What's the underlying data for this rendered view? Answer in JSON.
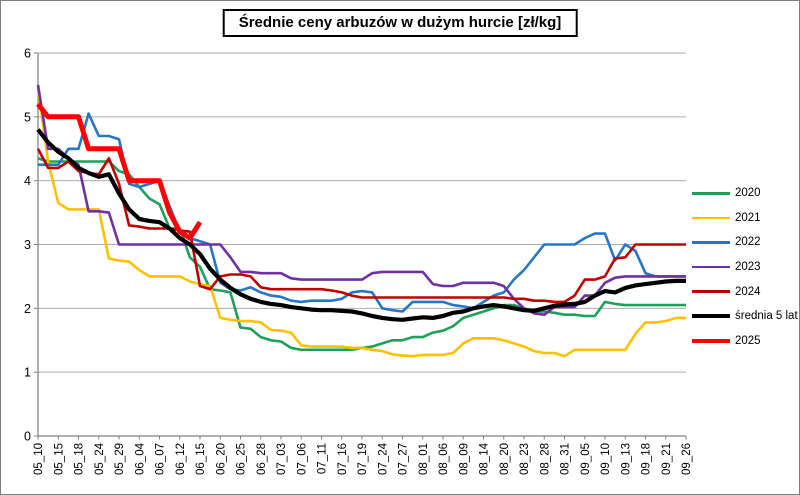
{
  "chart_data": {
    "type": "line",
    "title": "Średnie ceny arbuzów w dużym hurcie [zł/kg]",
    "xlabel": "",
    "ylabel": "",
    "ylim": [
      0,
      6
    ],
    "y_ticks": [
      0,
      1,
      2,
      3,
      4,
      5,
      6
    ],
    "grid": "horizontal",
    "legend_position": "right",
    "x_tick_labels": [
      "05_10",
      "05_15",
      "05_18",
      "05_24",
      "05_29",
      "06_04",
      "06_07",
      "06_12",
      "06_15",
      "06_20",
      "06_25",
      "06_28",
      "07_03",
      "07_06",
      "07_11",
      "07_16",
      "07_19",
      "07_24",
      "07_27",
      "08_01",
      "08_06",
      "08_09",
      "08_14",
      "08_20",
      "08_23",
      "08_28",
      "08_31",
      "09_05",
      "09_10",
      "09_13",
      "09_18",
      "09_21",
      "09_26"
    ],
    "points_per_label_interval": 2,
    "series": [
      {
        "name": "2020",
        "color": "#1FA05A",
        "line_width": 2.6,
        "values": [
          4.35,
          4.3,
          4.3,
          4.3,
          4.3,
          4.3,
          4.3,
          4.3,
          4.15,
          4.1,
          3.9,
          3.72,
          3.63,
          3.25,
          3.25,
          2.8,
          2.65,
          2.3,
          2.28,
          2.25,
          1.7,
          1.68,
          1.55,
          1.5,
          1.48,
          1.38,
          1.35,
          1.35,
          1.35,
          1.35,
          1.35,
          1.35,
          1.38,
          1.4,
          1.45,
          1.5,
          1.5,
          1.55,
          1.55,
          1.62,
          1.65,
          1.72,
          1.85,
          1.9,
          1.95,
          2.0,
          2.05,
          2.05,
          2.0,
          1.95,
          1.95,
          1.93,
          1.9,
          1.9,
          1.88,
          1.88,
          2.1,
          2.07,
          2.05,
          2.05,
          2.05,
          2.05,
          2.05,
          2.05,
          2.05
        ]
      },
      {
        "name": "2021",
        "color": "#FFC000",
        "line_width": 2.6,
        "values": [
          5.45,
          4.3,
          3.65,
          3.55,
          3.55,
          3.55,
          3.55,
          2.78,
          2.75,
          2.73,
          2.6,
          2.5,
          2.5,
          2.5,
          2.5,
          2.42,
          2.38,
          2.35,
          1.85,
          1.82,
          1.8,
          1.8,
          1.78,
          1.66,
          1.65,
          1.62,
          1.42,
          1.4,
          1.4,
          1.4,
          1.4,
          1.38,
          1.38,
          1.35,
          1.33,
          1.28,
          1.26,
          1.25,
          1.27,
          1.27,
          1.27,
          1.3,
          1.45,
          1.53,
          1.53,
          1.53,
          1.5,
          1.45,
          1.4,
          1.33,
          1.3,
          1.3,
          1.25,
          1.35,
          1.35,
          1.35,
          1.35,
          1.35,
          1.35,
          1.6,
          1.78,
          1.78,
          1.8,
          1.85,
          1.85
        ]
      },
      {
        "name": "2022",
        "color": "#2776C6",
        "line_width": 2.6,
        "values": [
          4.25,
          4.25,
          4.25,
          4.5,
          4.5,
          5.05,
          4.7,
          4.7,
          4.65,
          3.95,
          3.9,
          3.95,
          4.0,
          3.6,
          3.2,
          3.1,
          3.05,
          3.0,
          2.4,
          2.3,
          2.28,
          2.33,
          2.25,
          2.2,
          2.18,
          2.12,
          2.1,
          2.12,
          2.12,
          2.12,
          2.15,
          2.25,
          2.27,
          2.25,
          2.0,
          1.97,
          1.95,
          2.1,
          2.1,
          2.1,
          2.1,
          2.05,
          2.03,
          2.0,
          2.1,
          2.2,
          2.25,
          2.45,
          2.6,
          2.8,
          3.0,
          3.0,
          3.0,
          3.0,
          3.1,
          3.17,
          3.17,
          2.75,
          3.0,
          2.9,
          2.55,
          2.5,
          2.5,
          2.5,
          2.5
        ]
      },
      {
        "name": "2023",
        "color": "#7030A0",
        "line_width": 2.6,
        "values": [
          5.5,
          4.5,
          4.5,
          4.35,
          4.25,
          3.52,
          3.52,
          3.5,
          3.0,
          3.0,
          3.0,
          3.0,
          3.0,
          3.0,
          3.0,
          3.0,
          3.0,
          3.0,
          3.0,
          2.8,
          2.57,
          2.57,
          2.55,
          2.55,
          2.55,
          2.47,
          2.45,
          2.45,
          2.45,
          2.45,
          2.45,
          2.45,
          2.45,
          2.55,
          2.57,
          2.57,
          2.57,
          2.57,
          2.57,
          2.38,
          2.35,
          2.35,
          2.4,
          2.4,
          2.4,
          2.4,
          2.35,
          2.15,
          2.0,
          1.92,
          1.9,
          2.02,
          2.02,
          2.02,
          2.2,
          2.2,
          2.4,
          2.48,
          2.5,
          2.5,
          2.5,
          2.5,
          2.5,
          2.5,
          2.5
        ]
      },
      {
        "name": "2024",
        "color": "#C00000",
        "line_width": 2.6,
        "values": [
          4.5,
          4.2,
          4.2,
          4.3,
          4.15,
          4.12,
          4.1,
          4.35,
          3.95,
          3.3,
          3.28,
          3.25,
          3.25,
          3.25,
          3.22,
          3.2,
          2.35,
          2.3,
          2.5,
          2.53,
          2.53,
          2.5,
          2.33,
          2.3,
          2.3,
          2.3,
          2.3,
          2.3,
          2.3,
          2.28,
          2.25,
          2.2,
          2.17,
          2.17,
          2.17,
          2.17,
          2.17,
          2.17,
          2.17,
          2.17,
          2.17,
          2.17,
          2.17,
          2.17,
          2.17,
          2.17,
          2.17,
          2.15,
          2.15,
          2.12,
          2.12,
          2.1,
          2.1,
          2.2,
          2.45,
          2.45,
          2.5,
          2.78,
          2.8,
          3.0,
          3.0,
          3.0,
          3.0,
          3.0,
          3.0
        ]
      },
      {
        "name": "średnia 5 lat",
        "color": "#000000",
        "line_width": 4.2,
        "values": [
          4.8,
          4.6,
          4.45,
          4.35,
          4.2,
          4.12,
          4.06,
          4.1,
          3.8,
          3.55,
          3.4,
          3.37,
          3.35,
          3.25,
          3.1,
          3.0,
          2.85,
          2.62,
          2.45,
          2.32,
          2.22,
          2.15,
          2.1,
          2.07,
          2.05,
          2.02,
          2.0,
          1.98,
          1.97,
          1.97,
          1.96,
          1.95,
          1.92,
          1.88,
          1.85,
          1.83,
          1.82,
          1.84,
          1.86,
          1.85,
          1.88,
          1.93,
          1.95,
          2.0,
          2.03,
          2.05,
          2.03,
          2.0,
          1.97,
          1.96,
          2.0,
          2.04,
          2.06,
          2.07,
          2.1,
          2.2,
          2.27,
          2.25,
          2.32,
          2.36,
          2.38,
          2.4,
          2.42,
          2.43,
          2.43
        ]
      },
      {
        "name": "2025",
        "color": "#FF0000",
        "line_width": 5,
        "values": [
          5.2,
          5.0,
          5.0,
          5.0,
          5.0,
          4.5,
          4.5,
          4.5,
          4.5,
          4.0,
          4.0,
          4.0,
          4.0,
          3.5,
          3.2,
          3.1,
          3.35,
          null,
          null,
          null,
          null,
          null,
          null,
          null,
          null,
          null,
          null,
          null,
          null,
          null,
          null,
          null,
          null,
          null,
          null,
          null,
          null,
          null,
          null,
          null,
          null,
          null,
          null,
          null,
          null,
          null,
          null,
          null,
          null,
          null,
          null,
          null,
          null,
          null,
          null,
          null,
          null,
          null,
          null,
          null,
          null,
          null,
          null,
          null,
          null
        ]
      }
    ]
  }
}
